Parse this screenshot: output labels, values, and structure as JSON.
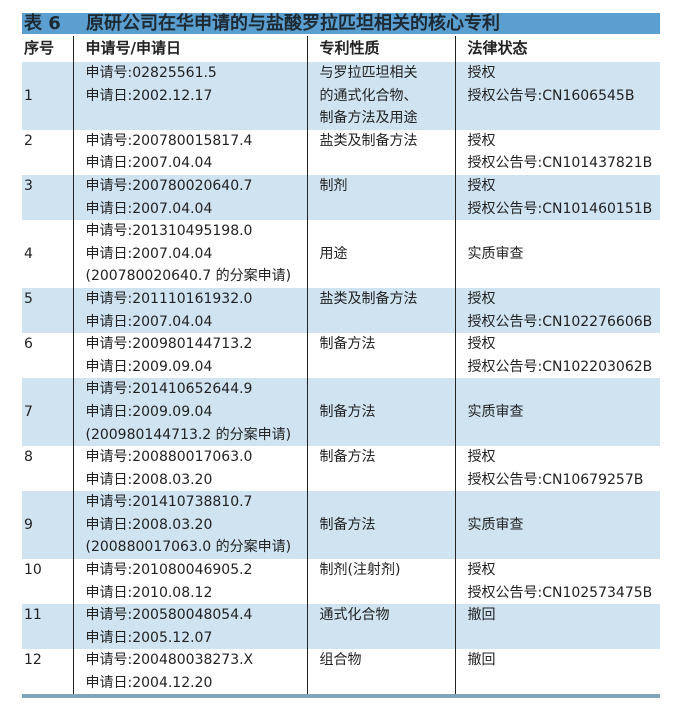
{
  "title": {
    "number": "表 6",
    "text": "原研公司在华申请的与盐酸罗拉匹坦相关的核心专利"
  },
  "headers": [
    "序号",
    "申请号/申请日",
    "专利性质",
    "法律状态"
  ],
  "rows": [
    {
      "no": "1",
      "app": [
        "申请号:02825561.5",
        "申请日:2002.12.17"
      ],
      "nature": [
        "与罗拉匹坦相关",
        "的通式化合物、",
        "制备方法及用途"
      ],
      "status": [
        "授权",
        "授权公告号:CN1606545B"
      ]
    },
    {
      "no": "2",
      "app": [
        "申请号:200780015817.4",
        "申请日:2007.04.04"
      ],
      "nature": [
        "盐类及制备方法"
      ],
      "status": [
        "授权",
        "授权公告号:CN101437821B"
      ]
    },
    {
      "no": "3",
      "app": [
        "申请号:200780020640.7",
        "申请日:2007.04.04"
      ],
      "nature": [
        "制剂"
      ],
      "status": [
        "授权",
        "授权公告号:CN101460151B"
      ]
    },
    {
      "no": "4",
      "app": [
        "申请号:201310495198.0",
        "申请日:2007.04.04",
        "(200780020640.7 的分案申请)"
      ],
      "nature": [
        "用途"
      ],
      "status": [
        "实质审查"
      ]
    },
    {
      "no": "5",
      "app": [
        "申请号:201110161932.0",
        "申请日:2007.04.04"
      ],
      "nature": [
        "盐类及制备方法"
      ],
      "status": [
        "授权",
        "授权公告号:CN102276606B"
      ]
    },
    {
      "no": "6",
      "app": [
        "申请号:200980144713.2",
        "申请日:2009.09.04"
      ],
      "nature": [
        "制备方法"
      ],
      "status": [
        "授权",
        "授权公告号:CN102203062B"
      ]
    },
    {
      "no": "7",
      "app": [
        "申请号:201410652644.9",
        "申请日:2009.09.04",
        "(200980144713.2 的分案申请)"
      ],
      "nature": [
        "制备方法"
      ],
      "status": [
        "实质审查"
      ]
    },
    {
      "no": "8",
      "app": [
        "申请号:200880017063.0",
        "申请日:2008.03.20"
      ],
      "nature": [
        "制备方法"
      ],
      "status": [
        "授权",
        "授权公告号:CN10679257B"
      ]
    },
    {
      "no": "9",
      "app": [
        "申请号:201410738810.7",
        "申请日:2008.03.20",
        "(200880017063.0 的分案申请)"
      ],
      "nature": [
        "制备方法"
      ],
      "status": [
        "实质审查"
      ]
    },
    {
      "no": "10",
      "app": [
        "申请号:201080046905.2",
        "申请日:2010.08.12"
      ],
      "nature": [
        "制剂(注射剂)"
      ],
      "status": [
        "授权",
        "授权公告号:CN102573475B"
      ]
    },
    {
      "no": "11",
      "app": [
        "申请号:200580048054.4",
        "申请日:2005.12.07"
      ],
      "nature": [
        "通式化合物"
      ],
      "status": [
        "撤回"
      ]
    },
    {
      "no": "12",
      "app": [
        "申请号:200480038273.X",
        "申请日:2004.12.20"
      ],
      "nature": [
        "组合物"
      ],
      "status": [
        "撤回"
      ]
    }
  ]
}
